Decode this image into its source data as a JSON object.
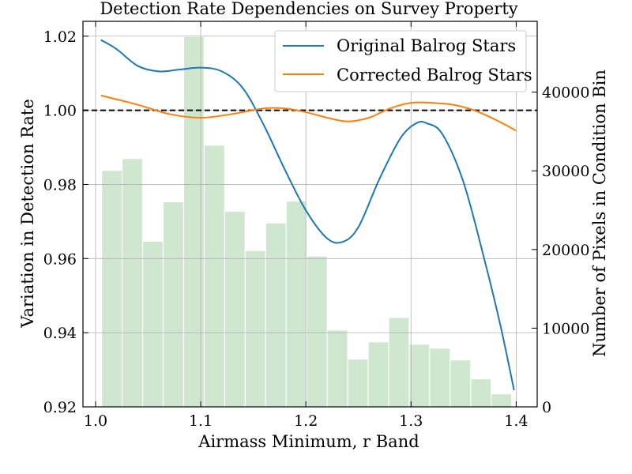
{
  "chart_data": {
    "type": "line",
    "title": "Detection Rate Dependencies on Survey Property",
    "xlabel": "Airmass Minimum, r Band",
    "ylabel": "Variation in Detection Rate",
    "y2label": "Number of Pixels in Condition Bin",
    "xlim": [
      0.988,
      1.42
    ],
    "ylim": [
      0.92,
      1.024
    ],
    "y2lim": [
      0,
      49000
    ],
    "x_ticks": [
      1.0,
      1.1,
      1.2,
      1.3,
      1.4
    ],
    "x_tick_labels": [
      "1.0",
      "1.1",
      "1.2",
      "1.3",
      "1.4"
    ],
    "y_ticks": [
      0.92,
      0.94,
      0.96,
      0.98,
      1.0,
      1.02
    ],
    "y_tick_labels": [
      "0.92",
      "0.94",
      "0.96",
      "0.98",
      "1.00",
      "1.02"
    ],
    "y2_ticks": [
      0,
      10000,
      20000,
      30000,
      40000
    ],
    "y2_tick_labels": [
      "0",
      "10000",
      "20000",
      "30000",
      "40000"
    ],
    "grid": true,
    "legend_position": "top-right",
    "reference_line": {
      "y": 1.0,
      "style": "dashed",
      "color": "#000000"
    },
    "series": [
      {
        "name": "Original Balrog Stars",
        "color": "#1f77b4",
        "x": [
          1.005,
          1.02,
          1.04,
          1.06,
          1.08,
          1.1,
          1.12,
          1.14,
          1.16,
          1.18,
          1.2,
          1.22,
          1.235,
          1.25,
          1.27,
          1.29,
          1.305,
          1.315,
          1.33,
          1.35,
          1.37,
          1.385,
          1.398
        ],
        "y": [
          1.019,
          1.0165,
          1.012,
          1.0105,
          1.011,
          1.0115,
          1.0105,
          1.006,
          0.996,
          0.984,
          0.973,
          0.9655,
          0.9645,
          0.9685,
          0.9815,
          0.9925,
          0.9965,
          0.9965,
          0.9935,
          0.9805,
          0.9595,
          0.942,
          0.9245
        ]
      },
      {
        "name": "Corrected Balrog Stars",
        "color": "#ff7f0e",
        "x": [
          1.005,
          1.04,
          1.07,
          1.1,
          1.13,
          1.16,
          1.18,
          1.2,
          1.22,
          1.24,
          1.26,
          1.28,
          1.3,
          1.32,
          1.34,
          1.36,
          1.38,
          1.4
        ],
        "y": [
          1.004,
          1.0015,
          0.999,
          0.998,
          0.999,
          1.0005,
          1.0005,
          0.9995,
          0.998,
          0.997,
          0.998,
          1.0005,
          1.002,
          1.002,
          1.0015,
          1.0,
          0.9975,
          0.9945
        ]
      }
    ],
    "histogram": {
      "name": "Number of Pixels in Condition Bin",
      "color": "#cfe6cf",
      "axis": "right",
      "bin_width": 0.0195,
      "bin_centers": [
        1.0155,
        1.035,
        1.0545,
        1.074,
        1.0935,
        1.113,
        1.1325,
        1.152,
        1.1715,
        1.191,
        1.2105,
        1.23,
        1.2495,
        1.269,
        1.2885,
        1.308,
        1.3275,
        1.347,
        1.3665,
        1.386
      ],
      "values": [
        30000,
        31500,
        21000,
        26000,
        47000,
        33200,
        24800,
        19800,
        23300,
        26100,
        19100,
        9700,
        6000,
        8200,
        11300,
        7900,
        7400,
        5900,
        3500,
        1600
      ]
    }
  }
}
